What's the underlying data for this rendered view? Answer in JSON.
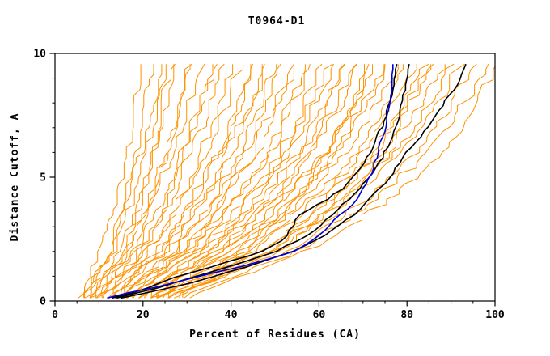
{
  "chart_data": {
    "type": "line",
    "title": "T0964-D1",
    "xlabel": "Percent of Residues (CA)",
    "ylabel": "Distance Cutoff, A",
    "xlim": [
      0,
      100
    ],
    "ylim": [
      0,
      10
    ],
    "x_major_ticks": [
      0,
      20,
      40,
      60,
      80,
      100
    ],
    "x_minor_step": 5,
    "y_major_ticks": [
      0,
      5,
      10
    ],
    "y_minor_step": 1,
    "grid": false,
    "legend": "none",
    "colors": {
      "ensemble": "#ff9200",
      "highlight": "#0000dd",
      "reference": "#000000",
      "axis": "#000000",
      "background": "#ffffff"
    },
    "highlight_series": {
      "name": "blue-model",
      "color": "#0000dd",
      "y": [
        0.15,
        0.3,
        0.6,
        1,
        1.5,
        2,
        2.5,
        3,
        3.5,
        4,
        4.5,
        5,
        5.5,
        6,
        6.5,
        7,
        7.5,
        8,
        8.5,
        9,
        9.6
      ],
      "x": [
        12,
        16,
        24,
        33,
        45,
        54,
        59,
        62,
        65,
        68,
        70,
        71.5,
        72.5,
        73.5,
        74.3,
        75,
        75.5,
        76,
        76.3,
        76.6,
        77
      ]
    },
    "reference_series": [
      {
        "name": "black-model-1",
        "color": "#000000",
        "y": [
          0.15,
          0.3,
          0.6,
          1,
          1.5,
          2,
          2.5,
          3,
          3.5,
          4,
          4.5,
          5,
          5.5,
          6,
          6.5,
          7,
          7.5,
          8,
          8.5,
          9,
          9.6
        ],
        "x": [
          13,
          17,
          22,
          28,
          38,
          47,
          52,
          54,
          55.5,
          61,
          65,
          68,
          70,
          71.5,
          73,
          74.2,
          75.2,
          76,
          76.6,
          77.1,
          77.6
        ]
      },
      {
        "name": "black-model-2",
        "color": "#000000",
        "y": [
          0.15,
          0.3,
          0.6,
          1,
          1.5,
          2,
          2.5,
          3,
          3.5,
          4,
          4.5,
          5,
          5.5,
          6,
          6.5,
          7,
          7.5,
          8,
          8.5,
          9,
          9.6
        ],
        "x": [
          14,
          18,
          25,
          32,
          42,
          50,
          56,
          60,
          63,
          66,
          69,
          71.5,
          73.5,
          75,
          76.5,
          77.5,
          78.3,
          79,
          79.5,
          80,
          80.5
        ]
      },
      {
        "name": "black-model-3",
        "color": "#000000",
        "y": [
          0.15,
          0.3,
          0.6,
          1,
          1.5,
          2,
          2.5,
          3,
          3.5,
          4,
          4.5,
          5,
          5.5,
          6,
          6.5,
          7,
          7.5,
          8,
          8.5,
          9,
          9.6
        ],
        "x": [
          15,
          20,
          28,
          36,
          46,
          54,
          60,
          64,
          68,
          71,
          73.5,
          76,
          78,
          80,
          82.5,
          84.5,
          86.5,
          88.5,
          90.5,
          92,
          93.5
        ]
      }
    ],
    "ensemble_series": {
      "name": "server-models-orange",
      "color": "#ff9200",
      "y_levels": [
        0.2,
        2,
        4,
        6,
        8,
        9.6
      ],
      "curves": [
        [
          5,
          10,
          13,
          16,
          18,
          20
        ],
        [
          6,
          12,
          15,
          18,
          20,
          22
        ],
        [
          6,
          13,
          17,
          20,
          23,
          25
        ],
        [
          7,
          12,
          16,
          19,
          22,
          24
        ],
        [
          7,
          14,
          19,
          22,
          25,
          28
        ],
        [
          8,
          15,
          19,
          22,
          24,
          26
        ],
        [
          8,
          16,
          21,
          25,
          28,
          30
        ],
        [
          9,
          17,
          22,
          26,
          30,
          33
        ],
        [
          9,
          18,
          24,
          29,
          33,
          36
        ],
        [
          10,
          16,
          21,
          25,
          28,
          30
        ],
        [
          10,
          20,
          26,
          31,
          35,
          38
        ],
        [
          11,
          21,
          28,
          34,
          39,
          42
        ],
        [
          11,
          19,
          25,
          29,
          33,
          35
        ],
        [
          12,
          23,
          31,
          37,
          42,
          45
        ],
        [
          12,
          21,
          28,
          33,
          37,
          40
        ],
        [
          13,
          25,
          33,
          40,
          45,
          48
        ],
        [
          13,
          23,
          31,
          37,
          42,
          44
        ],
        [
          14,
          27,
          36,
          43,
          48,
          52
        ],
        [
          14,
          25,
          33,
          39,
          44,
          47
        ],
        [
          15,
          29,
          38,
          46,
          51,
          55
        ],
        [
          15,
          27,
          35,
          42,
          47,
          50
        ],
        [
          16,
          31,
          41,
          49,
          54,
          58
        ],
        [
          16,
          29,
          38,
          45,
          50,
          53
        ],
        [
          17,
          33,
          44,
          52,
          58,
          62
        ],
        [
          17,
          30,
          40,
          48,
          53,
          57
        ],
        [
          18,
          35,
          46,
          55,
          61,
          65
        ],
        [
          18,
          32,
          43,
          51,
          57,
          60
        ],
        [
          19,
          37,
          49,
          58,
          64,
          68
        ],
        [
          19,
          34,
          45,
          53,
          59,
          63
        ],
        [
          20,
          39,
          52,
          61,
          68,
          72
        ],
        [
          20,
          36,
          47,
          56,
          62,
          66
        ],
        [
          21,
          41,
          54,
          64,
          70,
          75
        ],
        [
          21,
          37,
          49,
          58,
          65,
          69
        ],
        [
          22,
          43,
          56,
          66,
          73,
          78
        ],
        [
          22,
          39,
          51,
          61,
          68,
          72
        ],
        [
          23,
          45,
          59,
          70,
          77,
          82
        ],
        [
          23,
          41,
          54,
          64,
          71,
          76
        ],
        [
          24,
          47,
          62,
          73,
          80,
          85
        ],
        [
          24,
          44,
          57,
          68,
          75,
          80
        ],
        [
          25,
          49,
          64,
          76,
          83,
          88
        ],
        [
          26,
          51,
          67,
          79,
          87,
          92
        ],
        [
          26,
          47,
          61,
          72,
          79,
          84
        ],
        [
          27,
          53,
          70,
          82,
          90,
          95
        ],
        [
          28,
          50,
          65,
          77,
          85,
          90
        ],
        [
          29,
          55,
          72,
          85,
          93,
          98
        ],
        [
          30,
          57,
          75,
          88,
          96,
          100
        ],
        [
          25,
          42,
          54,
          62,
          67,
          70
        ],
        [
          28,
          49,
          63,
          74,
          81,
          86
        ]
      ]
    }
  }
}
